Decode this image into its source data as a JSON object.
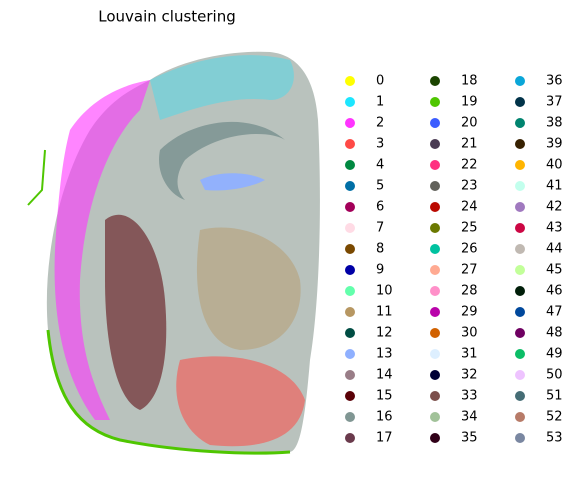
{
  "chart_data": {
    "type": "scatter",
    "title": "Louvain clustering",
    "series": [
      {
        "name": "0",
        "color": "#ffff00"
      },
      {
        "name": "1",
        "color": "#1ce6ff"
      },
      {
        "name": "2",
        "color": "#ff34ff"
      },
      {
        "name": "3",
        "color": "#ff4a46"
      },
      {
        "name": "4",
        "color": "#008941"
      },
      {
        "name": "5",
        "color": "#006fa6"
      },
      {
        "name": "6",
        "color": "#a30059"
      },
      {
        "name": "7",
        "color": "#ffdbe5"
      },
      {
        "name": "8",
        "color": "#7a4900"
      },
      {
        "name": "9",
        "color": "#0000a6"
      },
      {
        "name": "10",
        "color": "#63ffac"
      },
      {
        "name": "11",
        "color": "#b79762"
      },
      {
        "name": "12",
        "color": "#004d43"
      },
      {
        "name": "13",
        "color": "#8fb0ff"
      },
      {
        "name": "14",
        "color": "#997d87"
      },
      {
        "name": "15",
        "color": "#5a0007"
      },
      {
        "name": "16",
        "color": "#809693"
      },
      {
        "name": "17",
        "color": "#6a3a4c"
      },
      {
        "name": "18",
        "color": "#1b4400"
      },
      {
        "name": "19",
        "color": "#4fc601"
      },
      {
        "name": "20",
        "color": "#3b5dff"
      },
      {
        "name": "21",
        "color": "#4a3b53"
      },
      {
        "name": "22",
        "color": "#ff2f80"
      },
      {
        "name": "23",
        "color": "#61615a"
      },
      {
        "name": "24",
        "color": "#ba0900"
      },
      {
        "name": "25",
        "color": "#6b7900"
      },
      {
        "name": "26",
        "color": "#00c2a0"
      },
      {
        "name": "27",
        "color": "#ffaa92"
      },
      {
        "name": "28",
        "color": "#ff90c9"
      },
      {
        "name": "29",
        "color": "#b903aa"
      },
      {
        "name": "30",
        "color": "#d16100"
      },
      {
        "name": "31",
        "color": "#ddefff"
      },
      {
        "name": "32",
        "color": "#000035"
      },
      {
        "name": "33",
        "color": "#7b4f4b"
      },
      {
        "name": "34",
        "color": "#a1c299"
      },
      {
        "name": "35",
        "color": "#300018"
      },
      {
        "name": "36",
        "color": "#0aa6d8"
      },
      {
        "name": "37",
        "color": "#013349"
      },
      {
        "name": "38",
        "color": "#00846f"
      },
      {
        "name": "39",
        "color": "#372101"
      },
      {
        "name": "40",
        "color": "#ffb500"
      },
      {
        "name": "41",
        "color": "#c2ffed"
      },
      {
        "name": "42",
        "color": "#a079bf"
      },
      {
        "name": "43",
        "color": "#cc0744"
      },
      {
        "name": "44",
        "color": "#c0b9b2"
      },
      {
        "name": "45",
        "color": "#c2ff99"
      },
      {
        "name": "46",
        "color": "#001e09"
      },
      {
        "name": "47",
        "color": "#00489c"
      },
      {
        "name": "48",
        "color": "#6f0062"
      },
      {
        "name": "49",
        "color": "#0cbd66"
      },
      {
        "name": "50",
        "color": "#eec3ff"
      },
      {
        "name": "51",
        "color": "#456d75"
      },
      {
        "name": "52",
        "color": "#b77b68"
      },
      {
        "name": "53",
        "color": "#7a87a1"
      }
    ]
  }
}
